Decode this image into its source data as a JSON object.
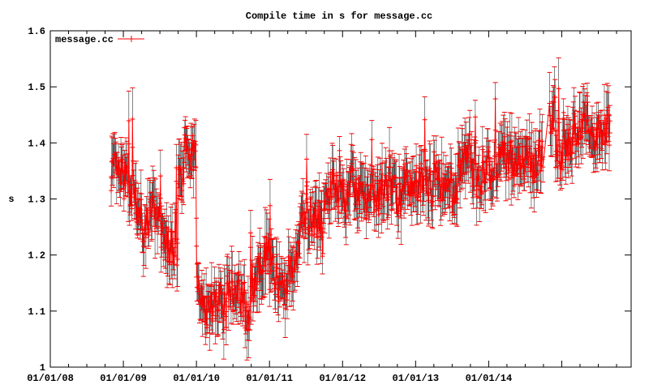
{
  "chart_data": {
    "type": "line",
    "title": "Compile time in s for message.cc",
    "xlabel": "",
    "ylabel": "s",
    "ylim": [
      1,
      1.6
    ],
    "xlim": [
      "01/01/08",
      "end of 2015"
    ],
    "yticks": [
      "1",
      "1.1",
      "1.2",
      "1.3",
      "1.4",
      "1.5",
      "1.6"
    ],
    "xticks": [
      "01/01/08",
      "01/01/09",
      "01/01/10",
      "01/01/11",
      "01/01/12",
      "01/01/13",
      "01/01/14",
      ""
    ],
    "grid": false,
    "legend": {
      "position": "top-left",
      "entries": [
        "message.cc"
      ]
    },
    "series_color": "#ff0000",
    "point_color": "#000000",
    "typical_error": 0.04,
    "series": [
      {
        "name": "message.cc",
        "points": [
          [
            "2008-11",
            1.35
          ],
          [
            "2008-12",
            1.34
          ],
          [
            "2009-01",
            1.33
          ],
          [
            "2009-02",
            1.31
          ],
          [
            "2009-03",
            1.28
          ],
          [
            "2009-04",
            1.25
          ],
          [
            "2009-05",
            1.27
          ],
          [
            "2009-06",
            1.27
          ],
          [
            "2009-07",
            1.24
          ],
          [
            "2009-08",
            1.22
          ],
          [
            "2009-09",
            1.21
          ],
          [
            "2009-10",
            1.33
          ],
          [
            "2009-11",
            1.4
          ],
          [
            "2009-12",
            1.38
          ],
          [
            "2010-01",
            1.13
          ],
          [
            "2010-02",
            1.1
          ],
          [
            "2010-03",
            1.11
          ],
          [
            "2010-04",
            1.12
          ],
          [
            "2010-05",
            1.1
          ],
          [
            "2010-06",
            1.14
          ],
          [
            "2010-07",
            1.13
          ],
          [
            "2010-08",
            1.12
          ],
          [
            "2010-09",
            1.1
          ],
          [
            "2010-10",
            1.15
          ],
          [
            "2010-11",
            1.18
          ],
          [
            "2010-12",
            1.2
          ],
          [
            "2011-01",
            1.17
          ],
          [
            "2011-02",
            1.15
          ],
          [
            "2011-03",
            1.14
          ],
          [
            "2011-04",
            1.17
          ],
          [
            "2011-05",
            1.2
          ],
          [
            "2011-06",
            1.25
          ],
          [
            "2011-07",
            1.27
          ],
          [
            "2011-08",
            1.26
          ],
          [
            "2011-09",
            1.26
          ],
          [
            "2011-10",
            1.3
          ],
          [
            "2011-11",
            1.32
          ],
          [
            "2011-12",
            1.31
          ],
          [
            "2012-01",
            1.3
          ],
          [
            "2012-02",
            1.33
          ],
          [
            "2012-03",
            1.31
          ],
          [
            "2012-04",
            1.3
          ],
          [
            "2012-05",
            1.29
          ],
          [
            "2012-06",
            1.3
          ],
          [
            "2012-07",
            1.31
          ],
          [
            "2012-08",
            1.32
          ],
          [
            "2012-09",
            1.31
          ],
          [
            "2012-10",
            1.3
          ],
          [
            "2012-11",
            1.33
          ],
          [
            "2012-12",
            1.32
          ],
          [
            "2013-01",
            1.33
          ],
          [
            "2013-02",
            1.34
          ],
          [
            "2013-03",
            1.32
          ],
          [
            "2013-04",
            1.35
          ],
          [
            "2013-05",
            1.33
          ],
          [
            "2013-06",
            1.32
          ],
          [
            "2013-07",
            1.31
          ],
          [
            "2013-08",
            1.36
          ],
          [
            "2013-09",
            1.38
          ],
          [
            "2013-10",
            1.34
          ],
          [
            "2013-11",
            1.33
          ],
          [
            "2013-12",
            1.36
          ],
          [
            "2014-01",
            1.35
          ],
          [
            "2014-02",
            1.37
          ],
          [
            "2014-03",
            1.38
          ],
          [
            "2014-04",
            1.37
          ],
          [
            "2014-05",
            1.36
          ],
          [
            "2014-06",
            1.37
          ],
          [
            "2014-07",
            1.38
          ],
          [
            "2014-08",
            1.36
          ],
          [
            "2014-09",
            1.37
          ],
          [
            "2014-11",
            1.45
          ],
          [
            "2014-12",
            1.39
          ],
          [
            "2015-01",
            1.38
          ],
          [
            "2015-02",
            1.4
          ],
          [
            "2015-03",
            1.43
          ],
          [
            "2015-04",
            1.44
          ],
          [
            "2015-05",
            1.42
          ],
          [
            "2015-06",
            1.41
          ],
          [
            "2015-07",
            1.42
          ],
          [
            "2015-08",
            1.43
          ]
        ]
      }
    ]
  }
}
